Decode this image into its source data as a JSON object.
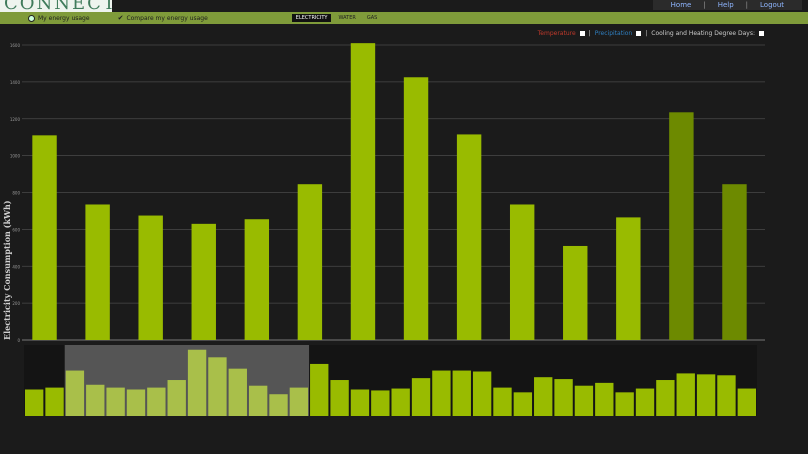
{
  "header": {
    "logo_text": "CONNECT",
    "nav": [
      "Home",
      "Help",
      "Logout"
    ]
  },
  "toolbar": {
    "my_energy_usage": "My energy usage",
    "compare_energy_usage": "Compare my energy usage",
    "tabs": [
      "ELECTRICITY",
      "WATER",
      "GAS"
    ],
    "active_tab": "ELECTRICITY"
  },
  "overlays": {
    "temperature": "Temperature",
    "precipitation": "Precipitation",
    "degree_days": "Cooling and Heating Degree Days:"
  },
  "colors": {
    "bar": "#99bb00",
    "bar_dark": "#6d8a00",
    "temperature": "#c0392b",
    "precipitation": "#2f7fc0"
  },
  "chart_data": {
    "type": "bar",
    "ylabel": "Electricity Consumption (kWh)",
    "ylim": [
      0,
      1600
    ],
    "grid": true,
    "values": [
      1110,
      735,
      675,
      630,
      655,
      845,
      1610,
      1425,
      1115,
      735,
      510,
      665,
      1235,
      845
    ],
    "muted_from_index": 12
  },
  "navigator": {
    "values": [
      28,
      30,
      48,
      33,
      30,
      28,
      30,
      38,
      70,
      62,
      50,
      32,
      23,
      30,
      55,
      38,
      28,
      27,
      29,
      40,
      48,
      48,
      47,
      30,
      25,
      41,
      39,
      32,
      35,
      25,
      29,
      38,
      45,
      44,
      43,
      29
    ],
    "selected_range": [
      2,
      14
    ]
  }
}
